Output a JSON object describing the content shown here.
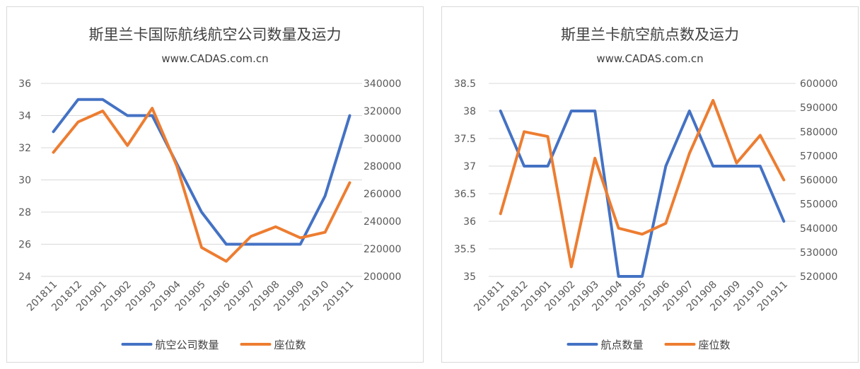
{
  "colors": {
    "blue": "#4472C4",
    "orange": "#ED7D31",
    "grid": "#D9D9D9",
    "text": "#595959"
  },
  "chart_data": [
    {
      "type": "line",
      "title": "斯里兰卡国际航线航空公司数量及运力",
      "subtitle": "www.CADAS.com.cn",
      "categories": [
        "201811",
        "201812",
        "201901",
        "201902",
        "201903",
        "201904",
        "201905",
        "201906",
        "201907",
        "201908",
        "201909",
        "201910",
        "201911"
      ],
      "series": [
        {
          "name": "航空公司数量",
          "axis": "left",
          "color": "#4472C4",
          "values": [
            33,
            35,
            35,
            34,
            34,
            31,
            28,
            26,
            26,
            26,
            26,
            29,
            34
          ]
        },
        {
          "name": "座位数",
          "axis": "right",
          "color": "#ED7D31",
          "values": [
            290000,
            312000,
            320000,
            295000,
            322000,
            280000,
            221000,
            211000,
            229000,
            236000,
            228000,
            232000,
            268000
          ]
        }
      ],
      "y_left": {
        "min": 24,
        "max": 36,
        "step": 2,
        "ticks": [
          "24",
          "26",
          "28",
          "30",
          "32",
          "34",
          "36"
        ]
      },
      "y_right": {
        "min": 200000,
        "max": 340000,
        "step": 20000,
        "ticks": [
          "200000",
          "220000",
          "240000",
          "260000",
          "280000",
          "300000",
          "320000",
          "340000"
        ]
      },
      "grid": true,
      "legend": "bottom"
    },
    {
      "type": "line",
      "title": "斯里兰卡航空航点数及运力",
      "subtitle": "www.CADAS.com.cn",
      "categories": [
        "201811",
        "201812",
        "201901",
        "201902",
        "201903",
        "201904",
        "201905",
        "201906",
        "201907",
        "201908",
        "201909",
        "201910",
        "201911"
      ],
      "series": [
        {
          "name": "航点数量",
          "axis": "left",
          "color": "#4472C4",
          "values": [
            38,
            37,
            37,
            38,
            38,
            35,
            35,
            37,
            38,
            37,
            37,
            37,
            36
          ]
        },
        {
          "name": "座位数",
          "axis": "right",
          "color": "#ED7D31",
          "values": [
            546000,
            580000,
            578000,
            524000,
            569000,
            540000,
            537500,
            542000,
            571000,
            593000,
            567000,
            578500,
            560000
          ]
        }
      ],
      "y_left": {
        "min": 35,
        "max": 38.5,
        "step": 0.5,
        "ticks": [
          "35",
          "35.5",
          "36",
          "36.5",
          "37",
          "37.5",
          "38",
          "38.5"
        ]
      },
      "y_right": {
        "min": 520000,
        "max": 600000,
        "step": 10000,
        "ticks": [
          "520000",
          "530000",
          "540000",
          "550000",
          "560000",
          "570000",
          "580000",
          "590000",
          "600000"
        ]
      },
      "grid": true,
      "legend": "bottom"
    }
  ]
}
